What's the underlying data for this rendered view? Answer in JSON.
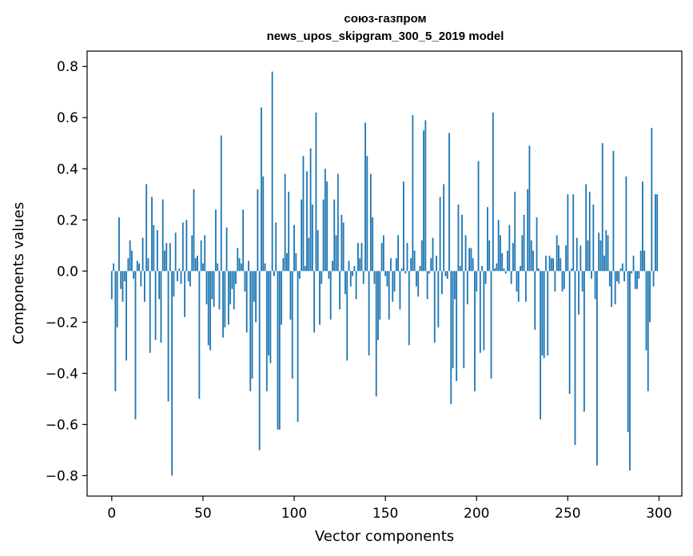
{
  "chart_data": {
    "type": "bar",
    "title_line1": "союз-газпром",
    "title_line2": "news_upos_skipgram_300_5_2019 model",
    "xlabel": "Vector components",
    "ylabel": "Components values",
    "xlim": [
      -13.5,
      312.5
    ],
    "ylim": [
      -0.88,
      0.86
    ],
    "xticks": [
      0,
      50,
      100,
      150,
      200,
      250,
      300
    ],
    "xtick_labels": [
      "0",
      "50",
      "100",
      "150",
      "200",
      "250",
      "300"
    ],
    "yticks": [
      -0.8,
      -0.6,
      -0.4,
      -0.2,
      0.0,
      0.2,
      0.4,
      0.6,
      0.8
    ],
    "ytick_labels": [
      "−0.8",
      "−0.6",
      "−0.4",
      "−0.2",
      "0.0",
      "0.2",
      "0.4",
      "0.6",
      "0.8"
    ],
    "bar_color": "#1f77b4",
    "values": [
      -0.11,
      0.03,
      -0.47,
      -0.22,
      0.21,
      -0.07,
      -0.12,
      -0.04,
      -0.35,
      0.05,
      0.12,
      0.08,
      -0.03,
      -0.58,
      0.04,
      0.03,
      -0.06,
      0.13,
      -0.12,
      0.34,
      0.05,
      -0.32,
      0.29,
      0.18,
      -0.27,
      0.16,
      -0.11,
      -0.28,
      0.28,
      0.08,
      0.11,
      -0.51,
      0.11,
      -0.8,
      -0.1,
      0.15,
      -0.04,
      0.01,
      -0.05,
      0.19,
      -0.18,
      0.2,
      -0.04,
      -0.06,
      0.14,
      0.32,
      0.05,
      0.06,
      -0.5,
      0.12,
      0.03,
      0.14,
      -0.13,
      -0.29,
      -0.31,
      -0.11,
      -0.14,
      0.24,
      0.03,
      -0.15,
      0.53,
      -0.26,
      -0.22,
      0.17,
      -0.21,
      -0.13,
      -0.07,
      -0.15,
      -0.05,
      0.09,
      0.05,
      0.03,
      0.24,
      -0.08,
      -0.24,
      0.04,
      -0.47,
      -0.42,
      -0.12,
      -0.2,
      0.32,
      -0.7,
      0.64,
      0.37,
      0.03,
      -0.47,
      -0.33,
      -0.36,
      0.78,
      -0.02,
      0.19,
      -0.62,
      -0.62,
      -0.21,
      0.05,
      0.38,
      0.07,
      0.31,
      -0.19,
      -0.42,
      0.18,
      0.07,
      -0.59,
      -0.03,
      0.28,
      0.45,
      0.02,
      0.39,
      0.13,
      0.48,
      0.26,
      -0.24,
      0.62,
      0.16,
      -0.21,
      -0.05,
      0.28,
      0.4,
      0.35,
      -0.03,
      -0.19,
      0.04,
      0.28,
      0.14,
      0.38,
      -0.15,
      0.22,
      0.19,
      -0.09,
      -0.35,
      0.04,
      -0.06,
      -0.02,
      0.02,
      -0.11,
      0.11,
      0.05,
      0.11,
      -0.05,
      0.58,
      0.45,
      -0.33,
      0.38,
      0.21,
      -0.05,
      -0.49,
      -0.27,
      -0.19,
      0.11,
      0.14,
      -0.02,
      -0.06,
      -0.19,
      0.05,
      -0.12,
      -0.08,
      0.05,
      0.14,
      -0.15,
      0.01,
      0.35,
      -0.01,
      0.11,
      -0.29,
      0.05,
      0.61,
      0.08,
      -0.06,
      -0.1,
      0.02,
      0.12,
      0.55,
      0.59,
      -0.11,
      -0.01,
      0.05,
      0.13,
      -0.28,
      0.06,
      -0.22,
      0.29,
      -0.09,
      0.34,
      -0.02,
      -0.03,
      0.54,
      -0.52,
      -0.38,
      -0.11,
      -0.43,
      0.26,
      0.02,
      0.22,
      -0.38,
      0.14,
      -0.13,
      0.09,
      0.09,
      0.05,
      -0.47,
      -0.08,
      0.43,
      -0.32,
      0.02,
      -0.31,
      -0.05,
      0.25,
      0.12,
      -0.42,
      0.62,
      0.01,
      0.03,
      0.2,
      0.14,
      0.07,
      0.01,
      -0.01,
      0.08,
      0.18,
      -0.05,
      0.11,
      0.31,
      -0.08,
      -0.12,
      0.02,
      0.14,
      0.22,
      -0.12,
      0.32,
      0.49,
      0.12,
      0.08,
      -0.23,
      0.21,
      0.01,
      -0.58,
      -0.33,
      -0.34,
      0.06,
      -0.33,
      0.06,
      0.05,
      0.05,
      -0.08,
      0.14,
      0.1,
      0.05,
      -0.08,
      -0.07,
      0.1,
      0.3,
      -0.48,
      0.01,
      0.3,
      -0.68,
      0.13,
      -0.17,
      0.1,
      -0.08,
      -0.55,
      0.34,
      0.12,
      0.31,
      -0.03,
      0.26,
      -0.11,
      -0.76,
      0.15,
      0.12,
      0.5,
      0.06,
      0.16,
      0.14,
      -0.06,
      -0.14,
      0.47,
      -0.13,
      -0.04,
      -0.05,
      0.01,
      0.03,
      -0.04,
      0.37,
      -0.63,
      -0.78,
      -0.01,
      0.06,
      -0.07,
      -0.07,
      -0.03,
      0.08,
      0.35,
      0.08,
      -0.31,
      -0.47,
      -0.2,
      0.56,
      -0.06,
      0.3,
      0.3
    ]
  }
}
